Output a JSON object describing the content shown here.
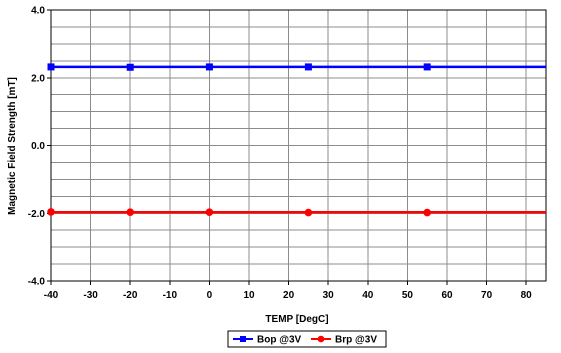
{
  "chart_data": {
    "type": "line",
    "title": "",
    "xlabel": "TEMP [DegC]",
    "ylabel": "Magnetic Field Strength [mT]",
    "xlim": [
      -40,
      85
    ],
    "ylim": [
      -4.0,
      4.0
    ],
    "x_ticks": [
      -40,
      -30,
      -20,
      -10,
      0,
      10,
      20,
      30,
      40,
      50,
      60,
      70,
      80
    ],
    "x_tick_labels": [
      "-40",
      "-30",
      "-20",
      "-10",
      "0",
      "10",
      "20",
      "30",
      "40",
      "50",
      "60",
      "70",
      "80"
    ],
    "y_ticks": [
      4.0,
      2.0,
      0.0,
      -2.0,
      -4.0
    ],
    "y_tick_labels": [
      "4.0",
      "2.0",
      "0.0",
      "-2.0",
      "-4.0"
    ],
    "y_minor_step": 0.5,
    "grid": true,
    "legend_position": "bottom-center",
    "series": [
      {
        "name": "Bop @3V",
        "color": "#0000ff",
        "marker": "square",
        "line_x": [
          -40,
          85
        ],
        "line_y": [
          2.32,
          2.32
        ],
        "x": [
          -40,
          -20,
          0,
          25,
          55
        ],
        "y": [
          2.32,
          2.31,
          2.32,
          2.32,
          2.32
        ]
      },
      {
        "name": "Brp @3V",
        "color": "#ff0000",
        "marker": "circle",
        "line_x": [
          -40,
          85
        ],
        "line_y": [
          -1.97,
          -1.97
        ],
        "x": [
          -40,
          -20,
          0,
          25,
          55
        ],
        "y": [
          -1.96,
          -1.97,
          -1.97,
          -1.98,
          -1.98
        ]
      }
    ]
  }
}
